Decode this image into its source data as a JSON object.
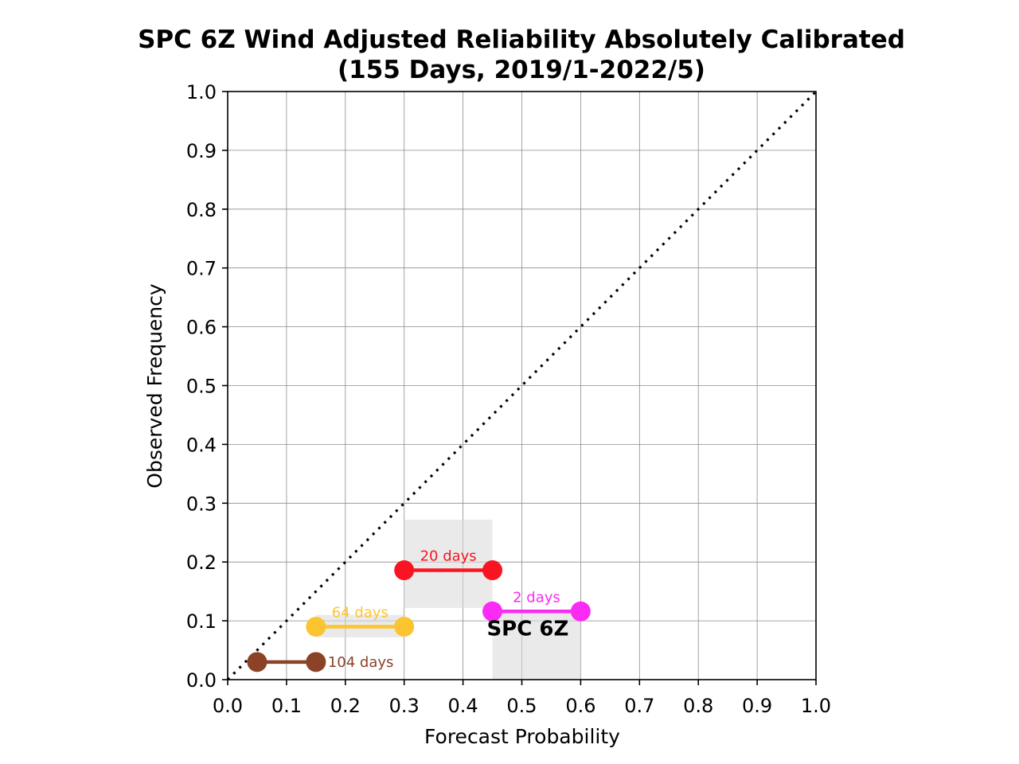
{
  "chart_data": {
    "type": "line",
    "title": [
      "SPC 6Z Wind Adjusted Reliability Absolutely Calibrated",
      "(155 Days, 2019/1-2022/5)"
    ],
    "xlabel": "Forecast Probability",
    "ylabel": "Observed Frequency",
    "xlim": [
      0.0,
      1.0
    ],
    "ylim": [
      0.0,
      1.0
    ],
    "x_ticks": [
      "0.0",
      "0.1",
      "0.2",
      "0.3",
      "0.4",
      "0.5",
      "0.6",
      "0.7",
      "0.8",
      "0.9",
      "1.0"
    ],
    "y_ticks": [
      "0.0",
      "0.1",
      "0.2",
      "0.3",
      "0.4",
      "0.5",
      "0.6",
      "0.7",
      "0.8",
      "0.9",
      "1.0"
    ],
    "grid": true,
    "diagonal": {
      "from": [
        0.0,
        0.0
      ],
      "to": [
        1.0,
        1.0
      ],
      "style": "dotted",
      "color": "#000000"
    },
    "series": [
      {
        "x": [
          0.05,
          0.15
        ],
        "y": 0.03,
        "label": "104 days",
        "color": "#8b4226",
        "range": null
      },
      {
        "x": [
          0.15,
          0.3
        ],
        "y": 0.09,
        "label": "64 days",
        "color": "#fcc430",
        "range": [
          0.072,
          0.11
        ]
      },
      {
        "x": [
          0.3,
          0.45
        ],
        "y": 0.186,
        "label": "20 days",
        "color": "#f81521",
        "range": [
          0.122,
          0.272
        ]
      },
      {
        "x": [
          0.45,
          0.6
        ],
        "y": 0.116,
        "label": "2 days",
        "color": "#f92bf4",
        "range": [
          0.0,
          0.116
        ]
      }
    ],
    "annotation": {
      "text": "SPC 6Z",
      "x": 0.51,
      "y": 0.075
    }
  }
}
